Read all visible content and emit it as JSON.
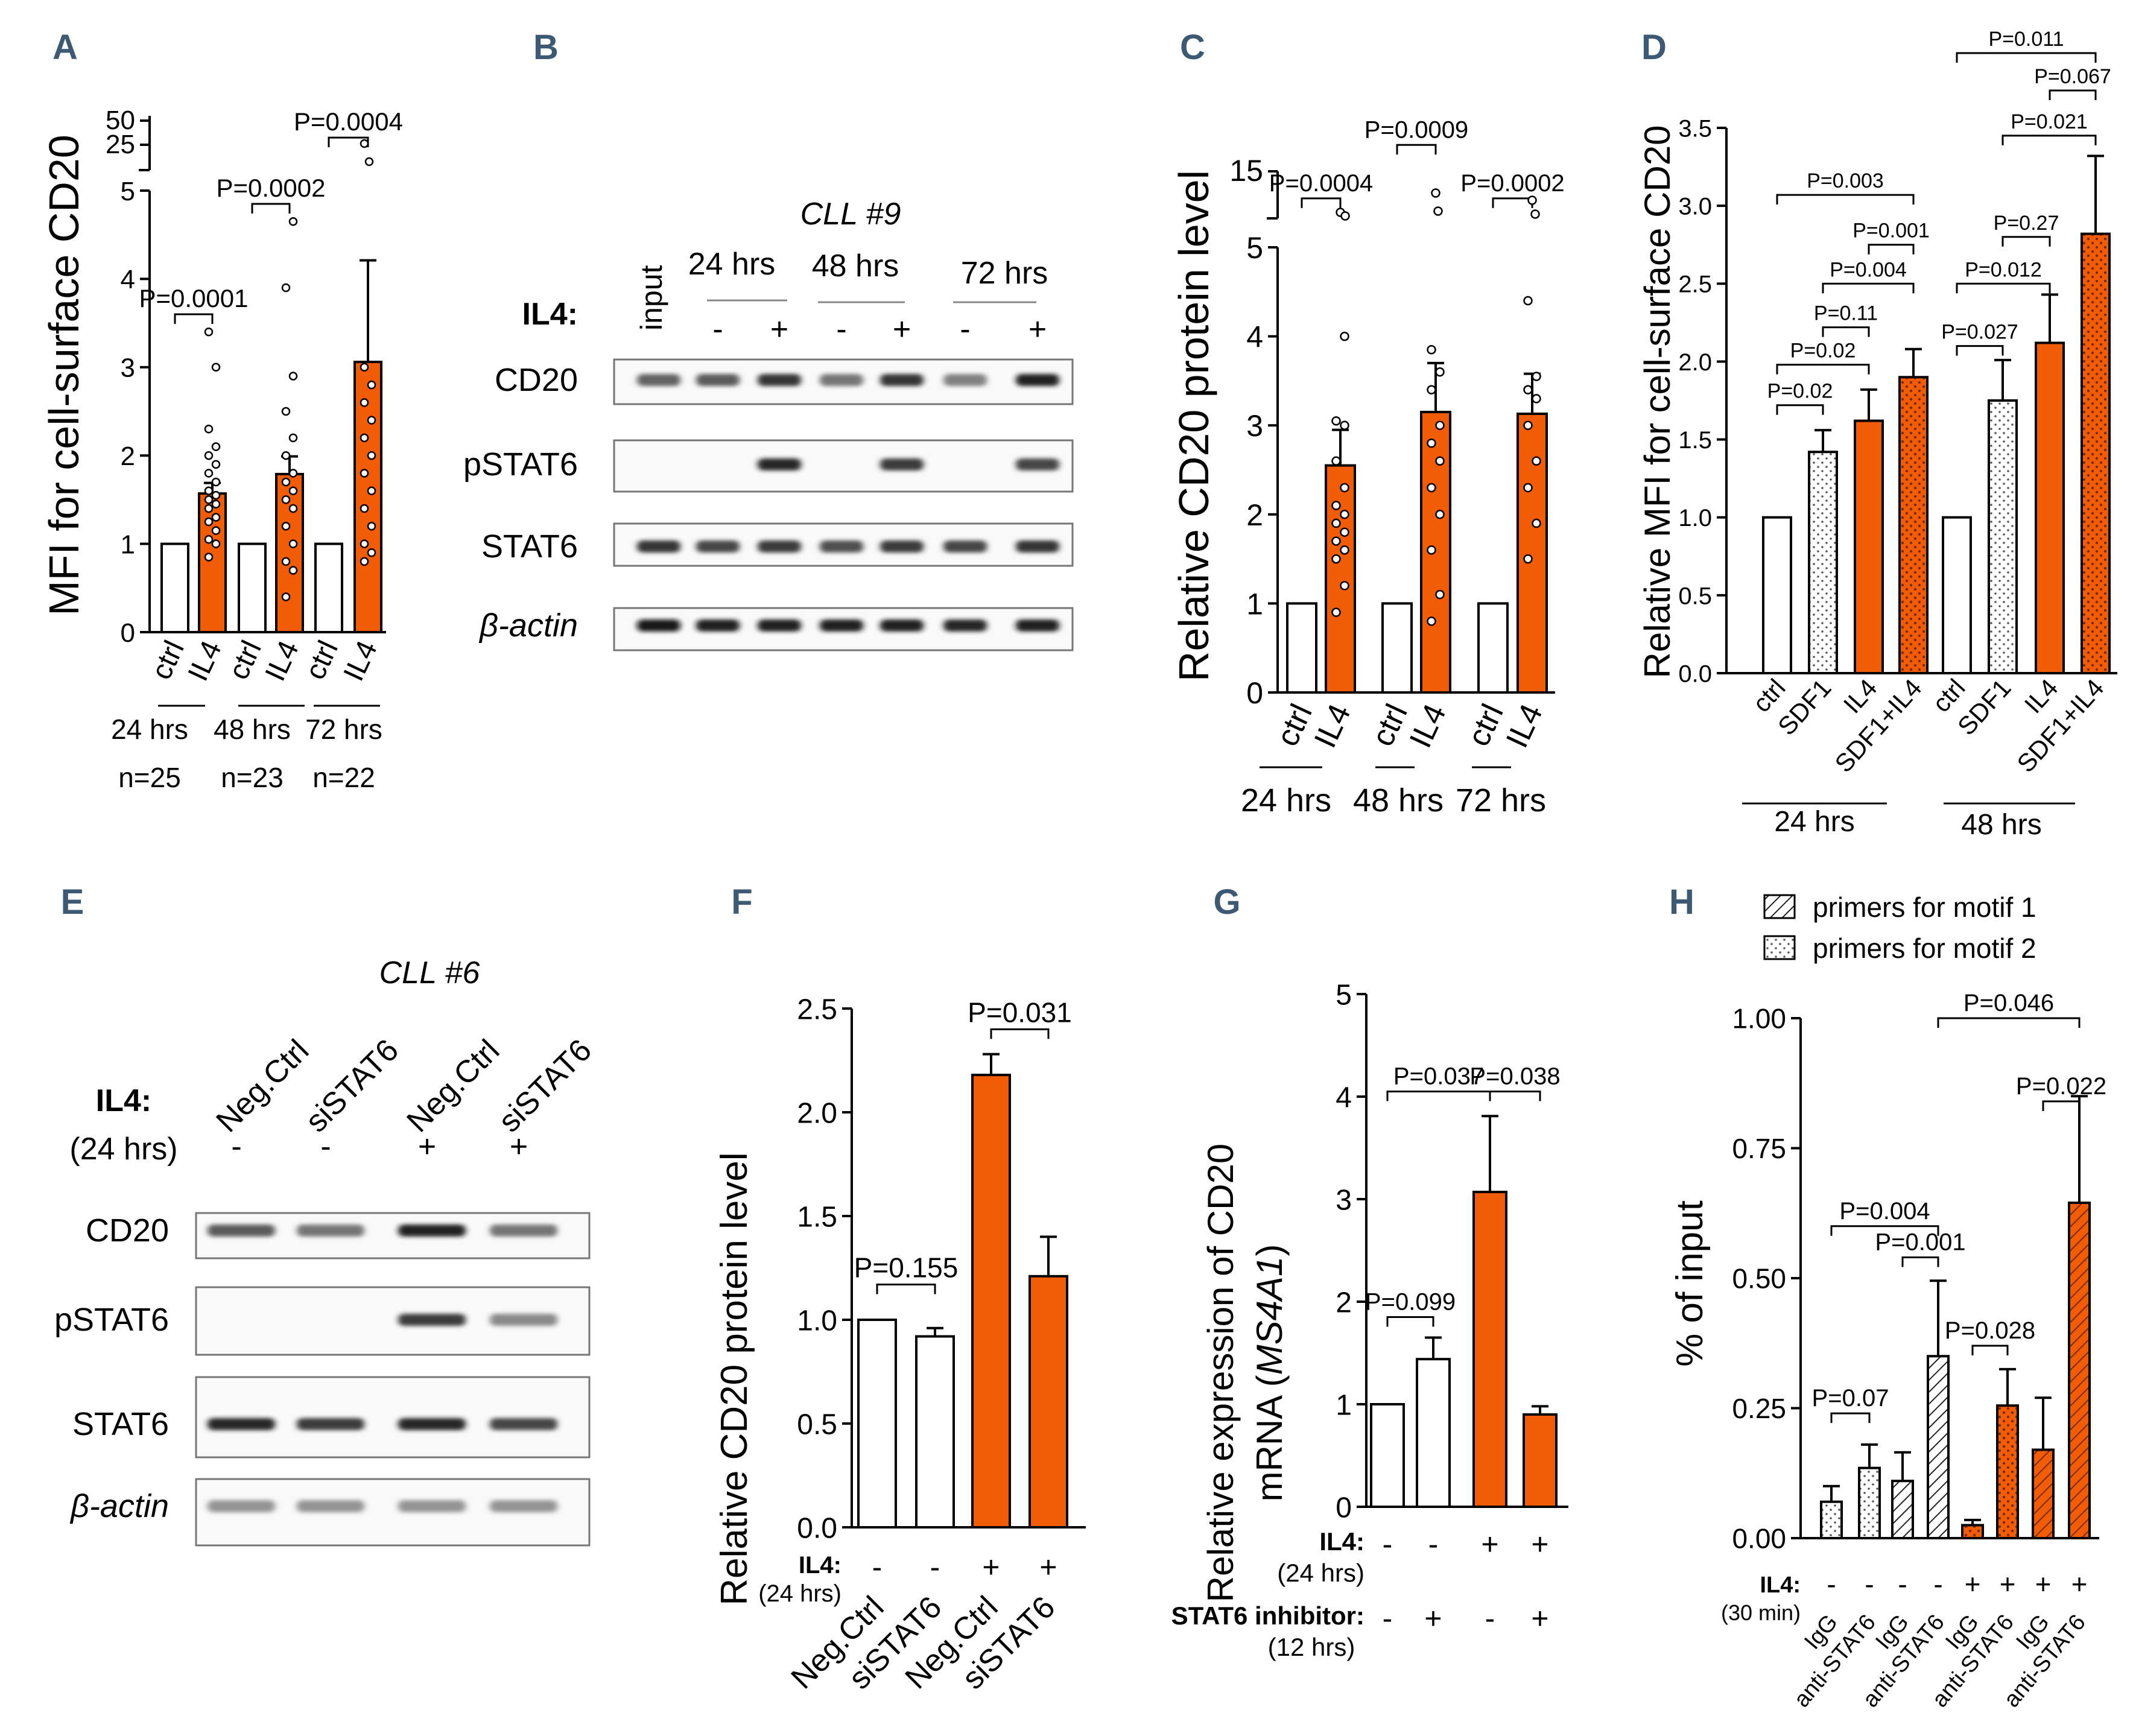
{
  "colors": {
    "orange": "#f25c05",
    "ink": "#000000",
    "label": "#3d5a75",
    "white": "#ffffff",
    "band": "#151515"
  },
  "chart_data": [
    {
      "panel": "A",
      "type": "bar",
      "ylabel": "MFI for cell-surface CD20",
      "yticks": [
        "0",
        "1",
        "2",
        "3",
        "4",
        "5"
      ],
      "ybreak_ticks": [
        "25",
        "50"
      ],
      "ylim": [
        0,
        5
      ],
      "categories": [
        "ctrl",
        "IL4",
        "ctrl",
        "IL4",
        "ctrl",
        "IL4"
      ],
      "values": [
        1.0,
        1.57,
        1.0,
        1.79,
        1.0,
        3.06
      ],
      "errors": [
        0,
        0.12,
        0,
        0.2,
        0,
        1.15
      ],
      "fills": [
        "white",
        "orange",
        "white",
        "orange",
        "white",
        "orange"
      ],
      "time_labels": [
        "24 hrs",
        "48 hrs",
        "72 hrs"
      ],
      "n_labels": [
        "n=25",
        "n=23",
        "n=22"
      ],
      "pvalues": [
        {
          "text": "P=0.0001",
          "from": 0,
          "to": 1,
          "y": 3.6
        },
        {
          "text": "P=0.0002",
          "from": 2,
          "to": 3,
          "y": 4.85
        },
        {
          "text": "P=0.0004",
          "from": 4,
          "to": 5,
          "y": 5.6
        }
      ]
    },
    {
      "panel": "B",
      "type": "blot",
      "sample": "CLL #9",
      "treatment_label": "IL4:",
      "lane_labels": [
        "input",
        "24 hrs",
        "48 hrs",
        "72 hrs"
      ],
      "signs": [
        "-",
        "+",
        "-",
        "+",
        "-",
        "+"
      ],
      "rows": [
        "CD20",
        "pSTAT6",
        "STAT6",
        "β-actin"
      ],
      "intensities": [
        [
          0.55,
          0.6,
          0.8,
          0.45,
          0.8,
          0.4,
          0.9
        ],
        [
          0,
          0,
          0.85,
          0,
          0.75,
          0,
          0.7
        ],
        [
          0.8,
          0.7,
          0.75,
          0.65,
          0.75,
          0.7,
          0.8
        ],
        [
          0.95,
          0.9,
          0.9,
          0.9,
          0.9,
          0.85,
          0.9
        ]
      ]
    },
    {
      "panel": "C",
      "type": "bar",
      "ylabel": "Relative CD20 protein level",
      "yticks": [
        "0",
        "1",
        "2",
        "3",
        "4",
        "5"
      ],
      "ybreak_ticks": [
        "15"
      ],
      "ylim": [
        0,
        5
      ],
      "categories": [
        "ctrl",
        "IL4",
        "ctrl",
        "IL4",
        "ctrl",
        "IL4"
      ],
      "values": [
        1.0,
        2.55,
        1.0,
        3.15,
        1.0,
        3.13
      ],
      "errors": [
        0,
        0.4,
        0,
        0.55,
        0,
        0.45
      ],
      "fills": [
        "white",
        "orange",
        "white",
        "orange",
        "white",
        "orange"
      ],
      "time_labels": [
        "24 hrs",
        "48 hrs",
        "72 hrs"
      ],
      "pvalues": [
        {
          "text": "P=0.0004",
          "from": 0,
          "to": 1,
          "y": 5.55
        },
        {
          "text": "P=0.0009",
          "from": 2,
          "to": 3,
          "y": 6.15
        },
        {
          "text": "P=0.0002",
          "from": 4,
          "to": 5,
          "y": 5.55
        }
      ]
    },
    {
      "panel": "D",
      "type": "bar",
      "ylabel": "Relative MFI for cell-surface CD20",
      "yticks": [
        "0.0",
        "0.5",
        "1.0",
        "1.5",
        "2.0",
        "2.5",
        "3.0",
        "3.5"
      ],
      "ylim": [
        0,
        3.5
      ],
      "categories": [
        "ctrl",
        "SDF1",
        "IL4",
        "SDF1+IL4",
        "ctrl",
        "SDF1",
        "IL4",
        "SDF1+IL4"
      ],
      "values": [
        1.0,
        1.42,
        1.62,
        1.9,
        1.0,
        1.75,
        2.12,
        2.82
      ],
      "errors": [
        0,
        0.14,
        0.2,
        0.18,
        0,
        0.26,
        0.31,
        0.5
      ],
      "fills": [
        "white",
        "dots",
        "orange",
        "orange-dots",
        "white",
        "dots",
        "orange",
        "orange-dots"
      ],
      "time_labels": [
        "24 hrs",
        "48 hrs"
      ],
      "pvalues": [
        {
          "text": "P=0.02",
          "from": 0,
          "to": 1,
          "y": 1.72
        },
        {
          "text": "P=0.02",
          "from": 0,
          "to": 2,
          "y": 1.98
        },
        {
          "text": "P=0.11",
          "from": 1,
          "to": 2,
          "y": 2.22
        },
        {
          "text": "P=0.004",
          "from": 1,
          "to": 3,
          "y": 2.5
        },
        {
          "text": "P=0.001",
          "from": 2,
          "to": 3,
          "y": 2.75
        },
        {
          "text": "P=0.003",
          "from": 0,
          "to": 3,
          "y": 3.07
        },
        {
          "text": "P=0.027",
          "from": 4,
          "to": 5,
          "y": 2.1
        },
        {
          "text": "P=0.012",
          "from": 4,
          "to": 6,
          "y": 2.5
        },
        {
          "text": "P=0.27",
          "from": 5,
          "to": 6,
          "y": 2.8
        },
        {
          "text": "P=0.021",
          "from": 5,
          "to": 7,
          "y": 3.45
        },
        {
          "text": "P=0.067",
          "from": 6,
          "to": 7,
          "y": 3.74
        },
        {
          "text": "P=0.011",
          "from": 4,
          "to": 7,
          "y": 3.98
        }
      ]
    },
    {
      "panel": "E",
      "type": "blot",
      "sample": "CLL #6",
      "treatment_label": "IL4:",
      "treatment_sub": "(24 hrs)",
      "lane_labels": [
        "Neg.Ctrl",
        "siSTAT6",
        "Neg.Ctrl",
        "siSTAT6"
      ],
      "signs": [
        "-",
        "-",
        "+",
        "+"
      ],
      "rows": [
        "CD20",
        "pSTAT6",
        "STAT6",
        "β-actin"
      ],
      "intensities": [
        [
          0.6,
          0.45,
          0.9,
          0.45
        ],
        [
          0,
          0,
          0.75,
          0.35
        ],
        [
          0.85,
          0.75,
          0.85,
          0.7
        ],
        [
          0.3,
          0.3,
          0.3,
          0.3
        ]
      ]
    },
    {
      "panel": "F",
      "type": "bar",
      "ylabel": "Relative CD20 protein level",
      "yticks": [
        "0.0",
        "0.5",
        "1.0",
        "1.5",
        "2.0",
        "2.5"
      ],
      "ylim": [
        0,
        2.5
      ],
      "categories": [
        "Neg.Ctrl",
        "siSTAT6",
        "Neg.Ctrl",
        "siSTAT6"
      ],
      "values": [
        1.0,
        0.92,
        2.18,
        1.21
      ],
      "errors": [
        0,
        0.04,
        0.1,
        0.19
      ],
      "fills": [
        "white",
        "white",
        "orange",
        "orange"
      ],
      "row_labels": {
        "il4": "IL4:",
        "il4_sub": "(24 hrs)"
      },
      "il4_signs": [
        "-",
        "-",
        "+",
        "+"
      ],
      "pvalues": [
        {
          "text": "P=0.155",
          "from": 0,
          "to": 1,
          "y": 1.17
        },
        {
          "text": "P=0.031",
          "from": 2,
          "to": 3,
          "y": 2.4
        }
      ]
    },
    {
      "panel": "G",
      "type": "bar",
      "ylabel_line1": "Relative expression  of CD20",
      "ylabel_line2_prefix": "mRNA (",
      "ylabel_line2_gene": "MS4A1",
      "ylabel_line2_suffix": ")",
      "yticks": [
        "0",
        "1",
        "2",
        "3",
        "4",
        "5"
      ],
      "ylim": [
        0,
        5
      ],
      "values": [
        1.0,
        1.44,
        3.07,
        0.9
      ],
      "errors": [
        0,
        0.21,
        0.74,
        0.08
      ],
      "fills": [
        "white",
        "white",
        "orange",
        "orange"
      ],
      "row_labels": {
        "il4": "IL4:",
        "il4_sub": "(24 hrs)",
        "inhib": "STAT6 inhibitor:",
        "inhib_sub": "(12 hrs)"
      },
      "il4_signs": [
        "-",
        "-",
        "+",
        "+"
      ],
      "inhib_signs": [
        "-",
        "+",
        "-",
        "+"
      ],
      "pvalues": [
        {
          "text": "P=0.099",
          "from": 0,
          "to": 1,
          "y": 1.85
        },
        {
          "text": "P=0.037",
          "from": 0,
          "to": 2,
          "y": 4.05
        },
        {
          "text": "P=0.038",
          "from": 2,
          "to": 3,
          "y": 4.05
        }
      ]
    },
    {
      "panel": "H",
      "type": "bar",
      "ylabel": "% of input",
      "yticks": [
        "0.00",
        "0.25",
        "0.50",
        "0.75",
        "1.00"
      ],
      "ylim": [
        0,
        1.0
      ],
      "categories": [
        "IgG",
        "anti-STAT6",
        "IgG",
        "anti-STAT6",
        "IgG",
        "anti-STAT6",
        "IgG",
        "anti-STAT6"
      ],
      "values": [
        0.07,
        0.135,
        0.11,
        0.35,
        0.025,
        0.255,
        0.17,
        0.645
      ],
      "errors": [
        0.03,
        0.045,
        0.055,
        0.145,
        0.01,
        0.07,
        0.1,
        0.205
      ],
      "fills": [
        "dots",
        "dots",
        "hatch",
        "hatch",
        "orange-dots",
        "orange-dots",
        "orange-hatch",
        "orange-hatch"
      ],
      "legend": [
        "primers for motif 1",
        "primers for motif 2"
      ],
      "row_labels": {
        "il4": "IL4:",
        "il4_sub": "(30 min)"
      },
      "il4_signs": [
        "-",
        "-",
        "-",
        "-",
        "+",
        "+",
        "+",
        "+"
      ],
      "pvalues": [
        {
          "text": "P=0.07",
          "from": 0,
          "to": 1,
          "y": 0.24
        },
        {
          "text": "P=0.001",
          "from": 2,
          "to": 3,
          "y": 0.54
        },
        {
          "text": "P=0.004",
          "from": 0,
          "to": 3,
          "y": 0.6
        },
        {
          "text": "P=0.028",
          "from": 4,
          "to": 5,
          "y": 0.37
        },
        {
          "text": "P=0.046",
          "from": 3,
          "to": 7,
          "y": 1.0
        },
        {
          "text": "P=0.022",
          "from": 6,
          "to": 7,
          "y": 0.84
        }
      ]
    }
  ]
}
